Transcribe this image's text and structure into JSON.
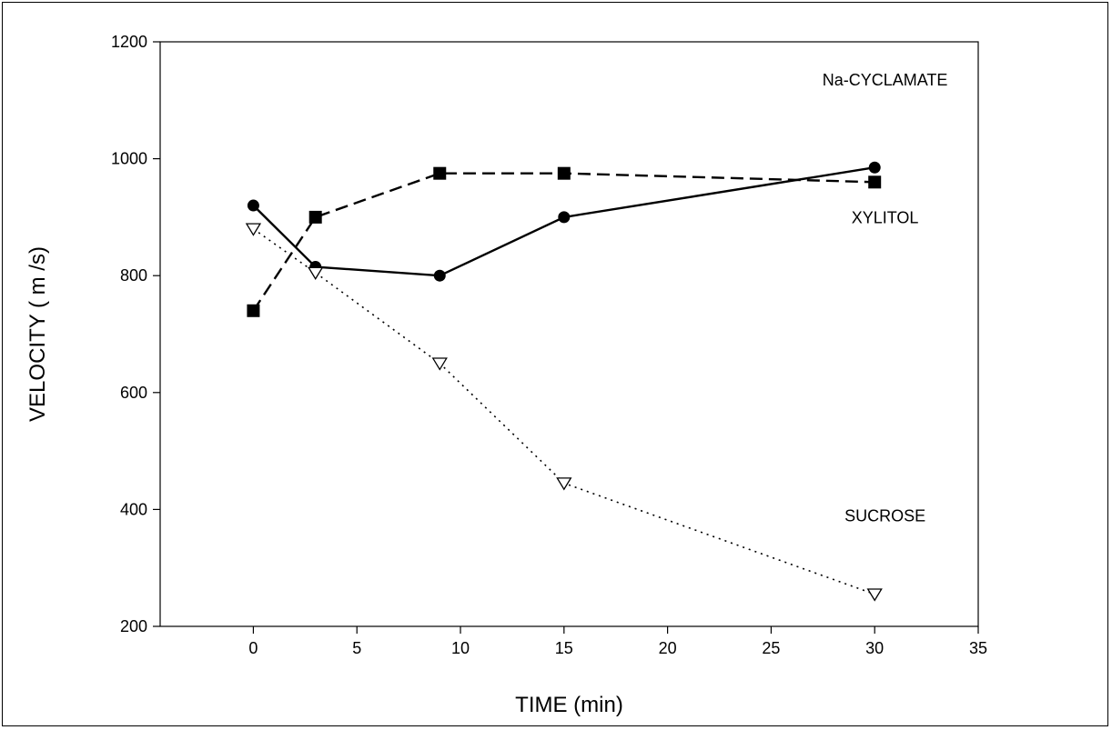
{
  "chart_data": {
    "type": "line",
    "title": "",
    "xlabel": "TIME (min)",
    "ylabel": "VELOCITY (  m /s)",
    "xlim": [
      -4.5,
      35
    ],
    "ylim": [
      200,
      1200
    ],
    "xticks": [
      0,
      5,
      10,
      15,
      20,
      25,
      30,
      35
    ],
    "yticks": [
      200,
      400,
      600,
      800,
      1000,
      1200
    ],
    "grid": false,
    "legend": "none",
    "series": [
      {
        "label": "XYLITOL",
        "marker": "circle-filled",
        "line_style": "solid",
        "color": "#000000",
        "x": [
          0,
          3,
          9,
          15,
          30
        ],
        "y": [
          920,
          815,
          800,
          900,
          985
        ]
      },
      {
        "label": "Na-CYCLAMATE",
        "marker": "square-filled",
        "line_style": "dashed",
        "color": "#000000",
        "x": [
          0,
          3,
          9,
          15,
          30
        ],
        "y": [
          740,
          900,
          975,
          975,
          960
        ]
      },
      {
        "label": "SUCROSE",
        "marker": "triangle-down-open",
        "line_style": "dotted",
        "color": "#000000",
        "x": [
          0,
          3,
          9,
          15,
          30
        ],
        "y": [
          880,
          805,
          650,
          445,
          255
        ]
      }
    ],
    "annotations": [
      {
        "text": "Na-CYCLAMATE",
        "x": 30.5,
        "y": 1125
      },
      {
        "text": "XYLITOL",
        "x": 30.5,
        "y": 890
      },
      {
        "text": "SUCROSE",
        "x": 30.5,
        "y": 380
      }
    ]
  }
}
